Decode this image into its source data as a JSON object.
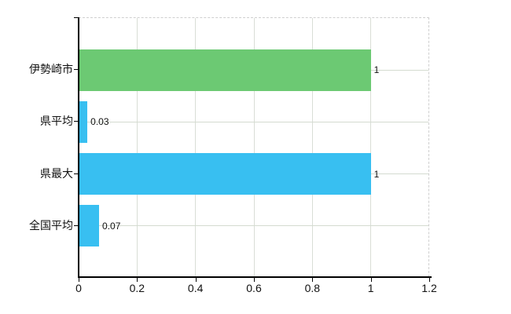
{
  "chart_data": {
    "type": "bar",
    "orientation": "horizontal",
    "title": "",
    "categories": [
      "伊勢崎市",
      "県平均",
      "県最大",
      "全国平均"
    ],
    "values": [
      1,
      0.03,
      1,
      0.07
    ],
    "value_labels": [
      "1",
      "0.03",
      "1",
      "0.07"
    ],
    "bar_colors": [
      "#6cc973",
      "#38bff1",
      "#38bff1",
      "#38bff1"
    ],
    "xlabel": "",
    "ylabel": "",
    "xlim": [
      0,
      1.2
    ],
    "x_ticks": [
      "0",
      "0.2",
      "0.4",
      "0.6",
      "0.8",
      "1",
      "1.2"
    ],
    "grid": "on",
    "legend": "none"
  },
  "colors": {
    "green_bar": "#6cc973",
    "blue_bar": "#38bff1",
    "axis": "#000000",
    "gridline": "#d7ddd3",
    "dashed_border": "#cfcfcf",
    "text": "#111111",
    "background": "#ffffff"
  }
}
